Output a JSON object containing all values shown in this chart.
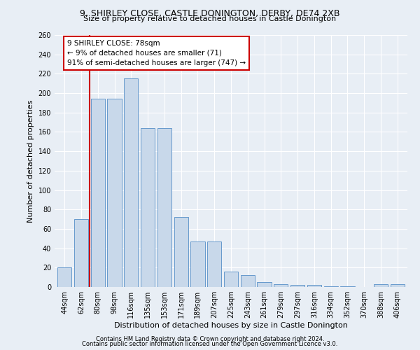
{
  "title": "9, SHIRLEY CLOSE, CASTLE DONINGTON, DERBY, DE74 2XB",
  "subtitle": "Size of property relative to detached houses in Castle Donington",
  "xlabel": "Distribution of detached houses by size in Castle Donington",
  "ylabel": "Number of detached properties",
  "footnote1": "Contains HM Land Registry data © Crown copyright and database right 2024.",
  "footnote2": "Contains public sector information licensed under the Open Government Licence v3.0.",
  "annotation_line1": "9 SHIRLEY CLOSE: 78sqm",
  "annotation_line2": "← 9% of detached houses are smaller (71)",
  "annotation_line3": "91% of semi-detached houses are larger (747) →",
  "bar_labels": [
    "44sqm",
    "62sqm",
    "80sqm",
    "98sqm",
    "116sqm",
    "135sqm",
    "153sqm",
    "171sqm",
    "189sqm",
    "207sqm",
    "225sqm",
    "243sqm",
    "261sqm",
    "279sqm",
    "297sqm",
    "316sqm",
    "334sqm",
    "352sqm",
    "370sqm",
    "388sqm",
    "406sqm"
  ],
  "bar_values": [
    20,
    70,
    194,
    194,
    215,
    164,
    164,
    72,
    47,
    47,
    16,
    12,
    5,
    3,
    2,
    2,
    1,
    1,
    0,
    3,
    3
  ],
  "bar_color": "#c8d8ea",
  "bar_edge_color": "#6699cc",
  "vline_x_idx": 1.5,
  "vline_color": "#cc0000",
  "annotation_box_color": "#cc0000",
  "background_color": "#e8eef5",
  "ylim": [
    0,
    260
  ],
  "yticks": [
    0,
    20,
    40,
    60,
    80,
    100,
    120,
    140,
    160,
    180,
    200,
    220,
    240,
    260
  ],
  "title_fontsize": 9,
  "subtitle_fontsize": 8,
  "ylabel_fontsize": 8,
  "xlabel_fontsize": 8,
  "tick_fontsize": 7,
  "footnote_fontsize": 6,
  "annotation_fontsize": 7.5
}
